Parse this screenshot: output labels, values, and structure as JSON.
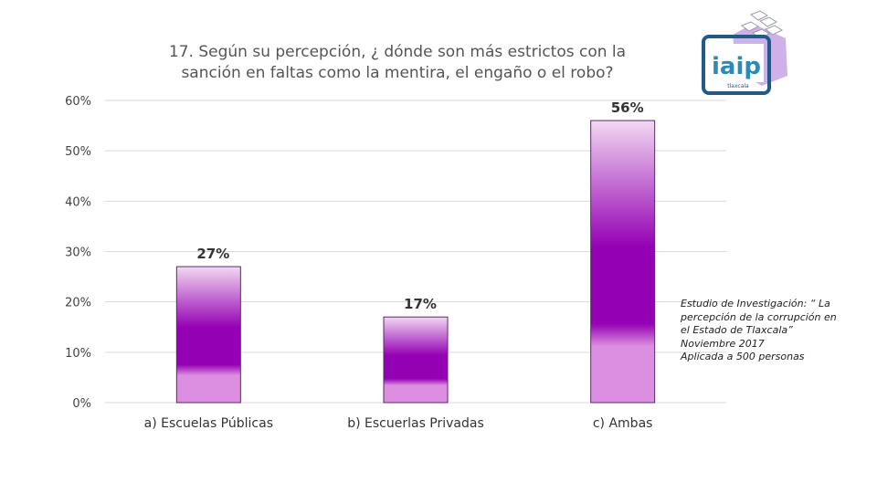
{
  "chart_data": {
    "type": "bar",
    "title_lines": [
      "17. Según su percepción, ¿ dónde son más estrictos con la",
      "sanción en faltas como la mentira, el engaño o el robo?"
    ],
    "categories": [
      "a) Escuelas Públicas",
      "b) Escuerlas Privadas",
      "c) Ambas"
    ],
    "values": [
      27,
      17,
      56
    ],
    "value_labels": [
      "27%",
      "17%",
      "56%"
    ],
    "ylim": [
      0,
      60
    ],
    "yticks": [
      0,
      10,
      20,
      30,
      40,
      50,
      60
    ],
    "ytick_labels": [
      "0%",
      "10%",
      "20%",
      "30%",
      "40%",
      "50%",
      "60%"
    ],
    "xlabel": "",
    "ylabel": "",
    "grid": true,
    "legend": "none"
  },
  "source_note": {
    "lines": [
      "Estudio de Investigación: “ La",
      "percepción de la corrupción en",
      "el Estado de Tlaxcala”",
      "Noviembre 2017",
      "Aplicada a 500 personas"
    ]
  },
  "logo": {
    "text": "iaip",
    "subtext": "tlaxcala"
  },
  "colors": {
    "bar_top": "#f2d8f2",
    "bar_mid": "#9400b3",
    "bar_bottom": "#dc8fe0",
    "bar_outline": "#5a2a6a",
    "gridline": "#d9d9d9",
    "tick_text": "#444444",
    "value_label": "#333333"
  }
}
